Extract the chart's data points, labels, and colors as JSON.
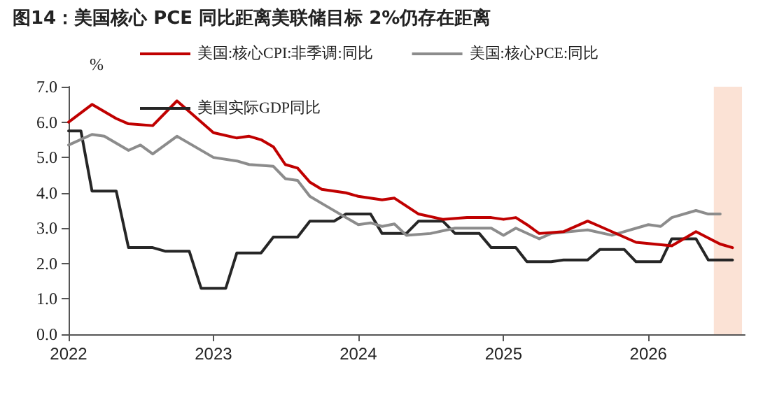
{
  "chart_data": {
    "type": "line",
    "title": "图14：美国核心 PCE 同比距离美联储目标 2%仍存在距离",
    "ylabel": "%",
    "xlim": [
      "2022-01",
      "2026-09"
    ],
    "xticks": [
      "2022",
      "2023",
      "2024",
      "2025",
      "2026"
    ],
    "ylim": [
      0,
      7
    ],
    "yticks": [
      {
        "value": 0,
        "label": "0.0"
      },
      {
        "value": 1,
        "label": "1.0"
      },
      {
        "value": 2,
        "label": "2.0"
      },
      {
        "value": 3,
        "label": "3.0"
      },
      {
        "value": 4,
        "label": "4.0"
      },
      {
        "value": 5,
        "label": "5.0"
      },
      {
        "value": 6,
        "label": "6.0"
      },
      {
        "value": 7,
        "label": "7.0"
      }
    ],
    "grid": false,
    "legend": "top",
    "marker": "none",
    "line_style": "solid",
    "bands": [
      {
        "axis": "x",
        "from": "2026-06-15",
        "to": "2026-08-25",
        "label": null,
        "color": "#fbe2d5"
      }
    ],
    "series": [
      {
        "name": "美国:核心CPI:非季调:同比",
        "color": "#c00000",
        "x": [
          "2022-01",
          "2022-03",
          "2022-05",
          "2022-06",
          "2022-08",
          "2022-10",
          "2022-11",
          "2023-01",
          "2023-03",
          "2023-04",
          "2023-05",
          "2023-06",
          "2023-07",
          "2023-08",
          "2023-09",
          "2023-10",
          "2023-12",
          "2024-01",
          "2024-03",
          "2024-04",
          "2024-06",
          "2024-08",
          "2024-10",
          "2024-12",
          "2025-01",
          "2025-02",
          "2025-03",
          "2025-04",
          "2025-06",
          "2025-08",
          "2025-09",
          "2025-12",
          "2026-03",
          "2026-05",
          "2026-07",
          "2026-08"
        ],
        "values": [
          6.0,
          6.5,
          6.1,
          5.95,
          5.9,
          6.6,
          6.3,
          5.7,
          5.55,
          5.6,
          5.5,
          5.3,
          4.8,
          4.7,
          4.3,
          4.1,
          4.0,
          3.9,
          3.8,
          3.85,
          3.4,
          3.25,
          3.3,
          3.3,
          3.25,
          3.3,
          3.1,
          2.85,
          2.9,
          3.2,
          3.05,
          2.6,
          2.5,
          2.9,
          2.55,
          2.45
        ]
      },
      {
        "name": "美国:核心PCE:同比",
        "color": "#8c8c8c",
        "x": [
          "2022-01",
          "2022-03",
          "2022-04",
          "2022-06",
          "2022-07",
          "2022-08",
          "2022-10",
          "2023-01",
          "2023-03",
          "2023-04",
          "2023-06",
          "2023-07",
          "2023-08",
          "2023-09",
          "2023-10",
          "2023-12",
          "2024-01",
          "2024-02",
          "2024-03",
          "2024-04",
          "2024-05",
          "2024-07",
          "2024-09",
          "2024-12",
          "2025-01",
          "2025-02",
          "2025-04",
          "2025-05",
          "2025-08",
          "2025-10",
          "2026-01",
          "2026-02",
          "2026-03",
          "2026-05",
          "2026-06",
          "2026-07"
        ],
        "values": [
          5.35,
          5.65,
          5.6,
          5.2,
          5.35,
          5.1,
          5.6,
          5.0,
          4.9,
          4.8,
          4.75,
          4.4,
          4.35,
          3.9,
          3.7,
          3.3,
          3.1,
          3.15,
          3.05,
          3.12,
          2.8,
          2.85,
          3.0,
          3.0,
          2.8,
          3.0,
          2.7,
          2.85,
          2.95,
          2.8,
          3.1,
          3.05,
          3.3,
          3.5,
          3.4,
          3.4
        ]
      },
      {
        "name": "美国实际GDP同比",
        "color": "#262626",
        "x": [
          "2022-01",
          "2022-02",
          "2022-03",
          "2022-05",
          "2022-06",
          "2022-08",
          "2022-09",
          "2022-11",
          "2022-12",
          "2023-02",
          "2023-03",
          "2023-05",
          "2023-06",
          "2023-08",
          "2023-09",
          "2023-11",
          "2023-12",
          "2024-02",
          "2024-03",
          "2024-05",
          "2024-06",
          "2024-08",
          "2024-09",
          "2024-11",
          "2024-12",
          "2025-02",
          "2025-03",
          "2025-05",
          "2025-06",
          "2025-08",
          "2025-09",
          "2025-11",
          "2025-12",
          "2026-02",
          "2026-03",
          "2026-05",
          "2026-06",
          "2026-08"
        ],
        "values": [
          5.75,
          5.75,
          4.05,
          4.05,
          2.45,
          2.45,
          2.35,
          2.35,
          1.3,
          1.3,
          2.3,
          2.3,
          2.75,
          2.75,
          3.2,
          3.2,
          3.4,
          3.4,
          2.85,
          2.85,
          3.2,
          3.2,
          2.85,
          2.85,
          2.45,
          2.45,
          2.05,
          2.05,
          2.1,
          2.1,
          2.4,
          2.4,
          2.05,
          2.05,
          2.7,
          2.7,
          2.1,
          2.1
        ]
      }
    ]
  }
}
